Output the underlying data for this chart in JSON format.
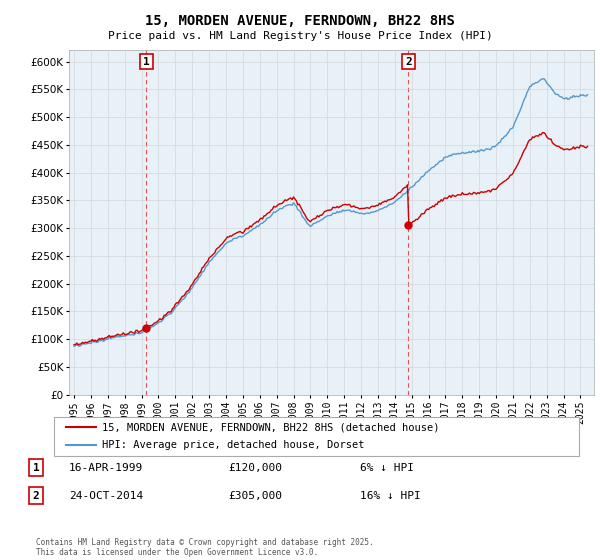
{
  "title": "15, MORDEN AVENUE, FERNDOWN, BH22 8HS",
  "subtitle": "Price paid vs. HM Land Registry's House Price Index (HPI)",
  "legend_line1": "15, MORDEN AVENUE, FERNDOWN, BH22 8HS (detached house)",
  "legend_line2": "HPI: Average price, detached house, Dorset",
  "annotation1_label": "1",
  "annotation1_date": "16-APR-1999",
  "annotation1_price": "£120,000",
  "annotation1_hpi": "6% ↓ HPI",
  "annotation1_year": 1999.29,
  "annotation2_label": "2",
  "annotation2_date": "24-OCT-2014",
  "annotation2_price": "£305,000",
  "annotation2_hpi": "16% ↓ HPI",
  "annotation2_year": 2014.81,
  "footer": "Contains HM Land Registry data © Crown copyright and database right 2025.\nThis data is licensed under the Open Government Licence v3.0.",
  "ylim": [
    0,
    620000
  ],
  "yticks": [
    0,
    50000,
    100000,
    150000,
    200000,
    250000,
    300000,
    350000,
    400000,
    450000,
    500000,
    550000,
    600000
  ],
  "price_color": "#cc0000",
  "hpi_color": "#5599cc",
  "annotation_color": "#cc0000",
  "vline_color": "#dd5555",
  "grid_color": "#cccccc",
  "bg_plot_color": "#e8f0f8",
  "background_color": "#ffffff"
}
